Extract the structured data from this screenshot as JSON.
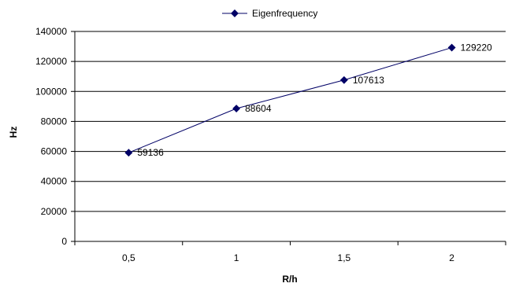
{
  "chart_data": {
    "type": "line",
    "title": "",
    "xlabel": "R/h",
    "ylabel": "Hz",
    "categories": [
      "0,5",
      "1",
      "1,5",
      "2"
    ],
    "series": [
      {
        "name": "Eigenfrequency",
        "values": [
          59136,
          88604,
          107613,
          129220
        ],
        "labels": [
          "59136",
          "88604",
          "107613",
          "129220"
        ],
        "color": "#000066"
      }
    ],
    "ylim": [
      0,
      140000
    ],
    "yticks": [
      0,
      20000,
      40000,
      60000,
      80000,
      100000,
      120000,
      140000
    ],
    "ytick_labels": [
      "0",
      "20000",
      "40000",
      "60000",
      "80000",
      "100000",
      "120000",
      "140000"
    ],
    "grid": "horizontal",
    "legend_position": "top-center"
  }
}
